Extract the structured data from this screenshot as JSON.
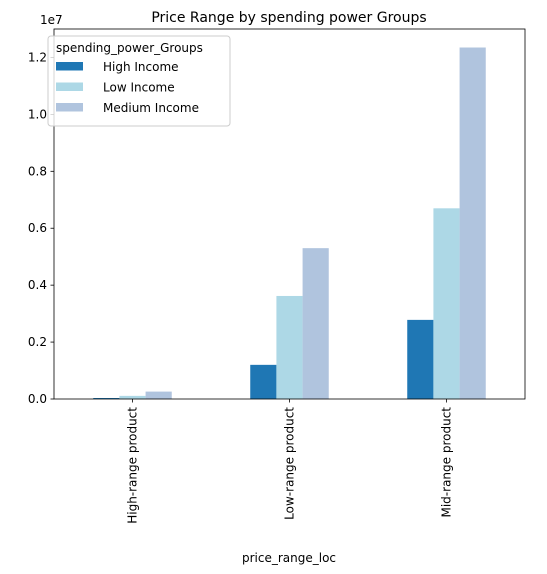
{
  "chart_data": {
    "type": "bar",
    "title": "Price Range by spending power Groups",
    "xlabel": "price_range_loc",
    "ylabel": "",
    "categories": [
      "High-range product",
      "Low-range product",
      "Mid-range product"
    ],
    "series": [
      {
        "name": "High Income",
        "color": "#1f77b4",
        "values": [
          35000,
          1200000,
          2780000
        ]
      },
      {
        "name": "Low Income",
        "color": "#add8e6",
        "values": [
          110000,
          3620000,
          6700000
        ]
      },
      {
        "name": "Medium Income",
        "color": "#b0c4de",
        "values": [
          260000,
          5300000,
          12350000
        ]
      }
    ],
    "ylim": [
      0,
      13000000
    ],
    "yticks": [
      0,
      2000000,
      4000000,
      6000000,
      8000000,
      10000000,
      12000000
    ],
    "ytick_labels": [
      "0.0",
      "0.2",
      "0.4",
      "0.6",
      "0.8",
      "1.0",
      "1.2"
    ],
    "y_offset_label": "1e7",
    "legend": {
      "title": "spending_power_Groups",
      "position": "top-left"
    },
    "grid": false
  }
}
